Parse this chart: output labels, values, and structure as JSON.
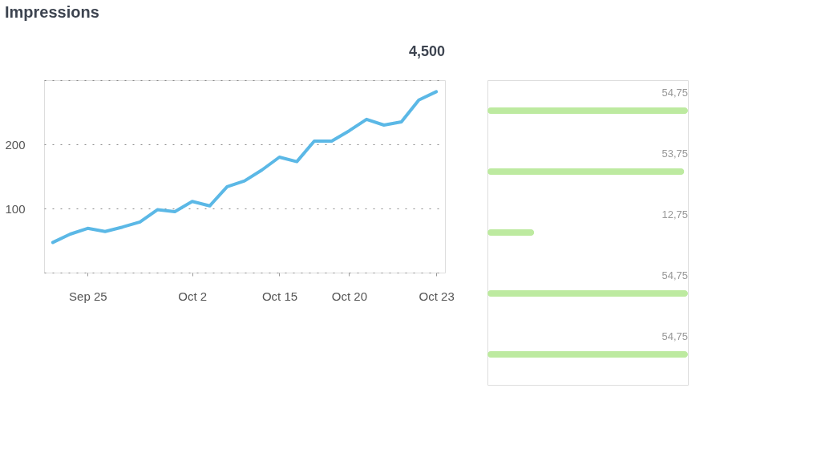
{
  "chart_data": [
    {
      "type": "line",
      "title": "Impressions",
      "annotations": [
        "4,500"
      ],
      "categories": [
        null,
        null,
        "Sep 25",
        null,
        null,
        null,
        null,
        null,
        "Oct 2",
        null,
        null,
        null,
        null,
        "Oct 15",
        null,
        null,
        null,
        "Oct 20",
        null,
        null,
        null,
        null,
        "Oct 23"
      ],
      "series": [
        {
          "color": "#5bb8e6",
          "values": [
            47,
            60,
            69,
            64,
            71,
            79,
            98,
            95,
            111,
            104,
            134,
            143,
            160,
            180,
            173,
            205,
            205,
            221,
            239,
            230,
            235,
            269,
            282
          ]
        }
      ],
      "ylim": [
        0,
        300
      ],
      "yticks": [
        {
          "value": 0,
          "label": null
        },
        100,
        200,
        {
          "value": 300,
          "label": null
        }
      ],
      "grid": "y",
      "line_style": "solid",
      "marker": "none"
    },
    {
      "type": "bar",
      "orientation": "horizontal",
      "categories": [
        null,
        null,
        null,
        null,
        null
      ],
      "values": [
        54.75,
        53.75,
        12.75,
        54.75,
        54.75
      ],
      "value_labels": [
        "54,75",
        "53,75",
        "12,75",
        "54,75",
        "54,75"
      ],
      "color": "#bdeaa0"
    }
  ]
}
